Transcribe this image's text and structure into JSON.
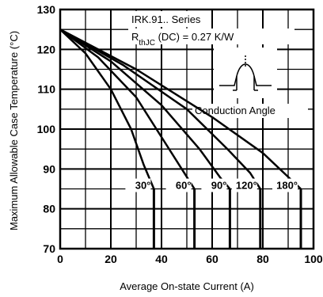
{
  "chart_data": {
    "type": "line",
    "title": "IRK.91.. Series",
    "rth_text": {
      "prefix": "R",
      "subscript": "thJC",
      "suffix": " (DC) = 0.27 K/W"
    },
    "inset_label": "Conduction Angle",
    "xlabel": "Average On-state Current (A)",
    "ylabel": "Maximum Allowable Case Temperature (°C)",
    "xlim": [
      0,
      100
    ],
    "ylim": [
      70,
      130
    ],
    "xticks": [
      0,
      20,
      40,
      60,
      80,
      100
    ],
    "yticks": [
      70,
      80,
      90,
      100,
      110,
      120,
      130
    ],
    "grid": true,
    "series": [
      {
        "name": "30°",
        "x": [
          0,
          10,
          20,
          28,
          33,
          37
        ],
        "y": [
          125,
          119,
          110,
          100,
          91,
          85
        ]
      },
      {
        "name": "60°",
        "x": [
          0,
          15,
          30,
          42,
          50,
          53
        ],
        "y": [
          125,
          118,
          108,
          96,
          88,
          85
        ]
      },
      {
        "name": "90°",
        "x": [
          0,
          20,
          40,
          55,
          63,
          67
        ],
        "y": [
          125,
          117,
          106,
          95,
          88,
          85
        ]
      },
      {
        "name": "120°",
        "x": [
          0,
          25,
          50,
          66,
          75,
          79
        ],
        "y": [
          125,
          116,
          105,
          95,
          89,
          85
        ]
      },
      {
        "name": "180°",
        "x": [
          0,
          30,
          60,
          80,
          90,
          95
        ],
        "y": [
          125,
          115,
          103,
          94,
          88,
          85
        ]
      }
    ]
  }
}
